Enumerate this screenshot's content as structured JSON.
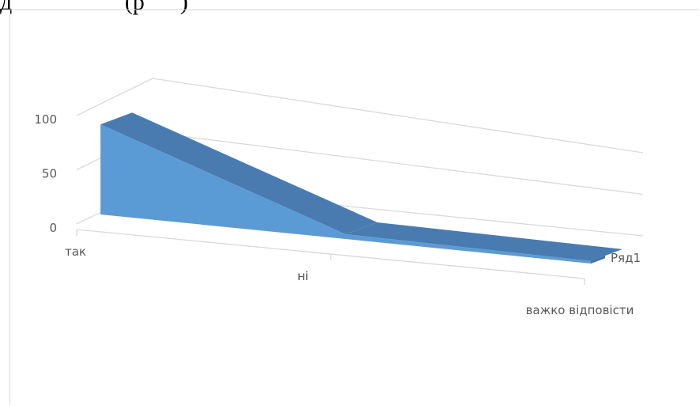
{
  "page_text": "д                   (р      )",
  "chart_data": {
    "type": "area",
    "three_d": true,
    "categories": [
      "так",
      "ні",
      "важко відповісти"
    ],
    "series": [
      {
        "name": "Ряд1",
        "values": [
          83,
          5,
          3
        ]
      }
    ],
    "y_ticks": [
      "0",
      "50",
      "100"
    ],
    "ylim": [
      0,
      100
    ],
    "grid": true,
    "legend_position": "right",
    "colors": {
      "front": "#5b9bd5",
      "top": "#4a7bb0",
      "side": "#3f6fa3",
      "grid": "#d9d9d9",
      "text": "#595959"
    }
  }
}
